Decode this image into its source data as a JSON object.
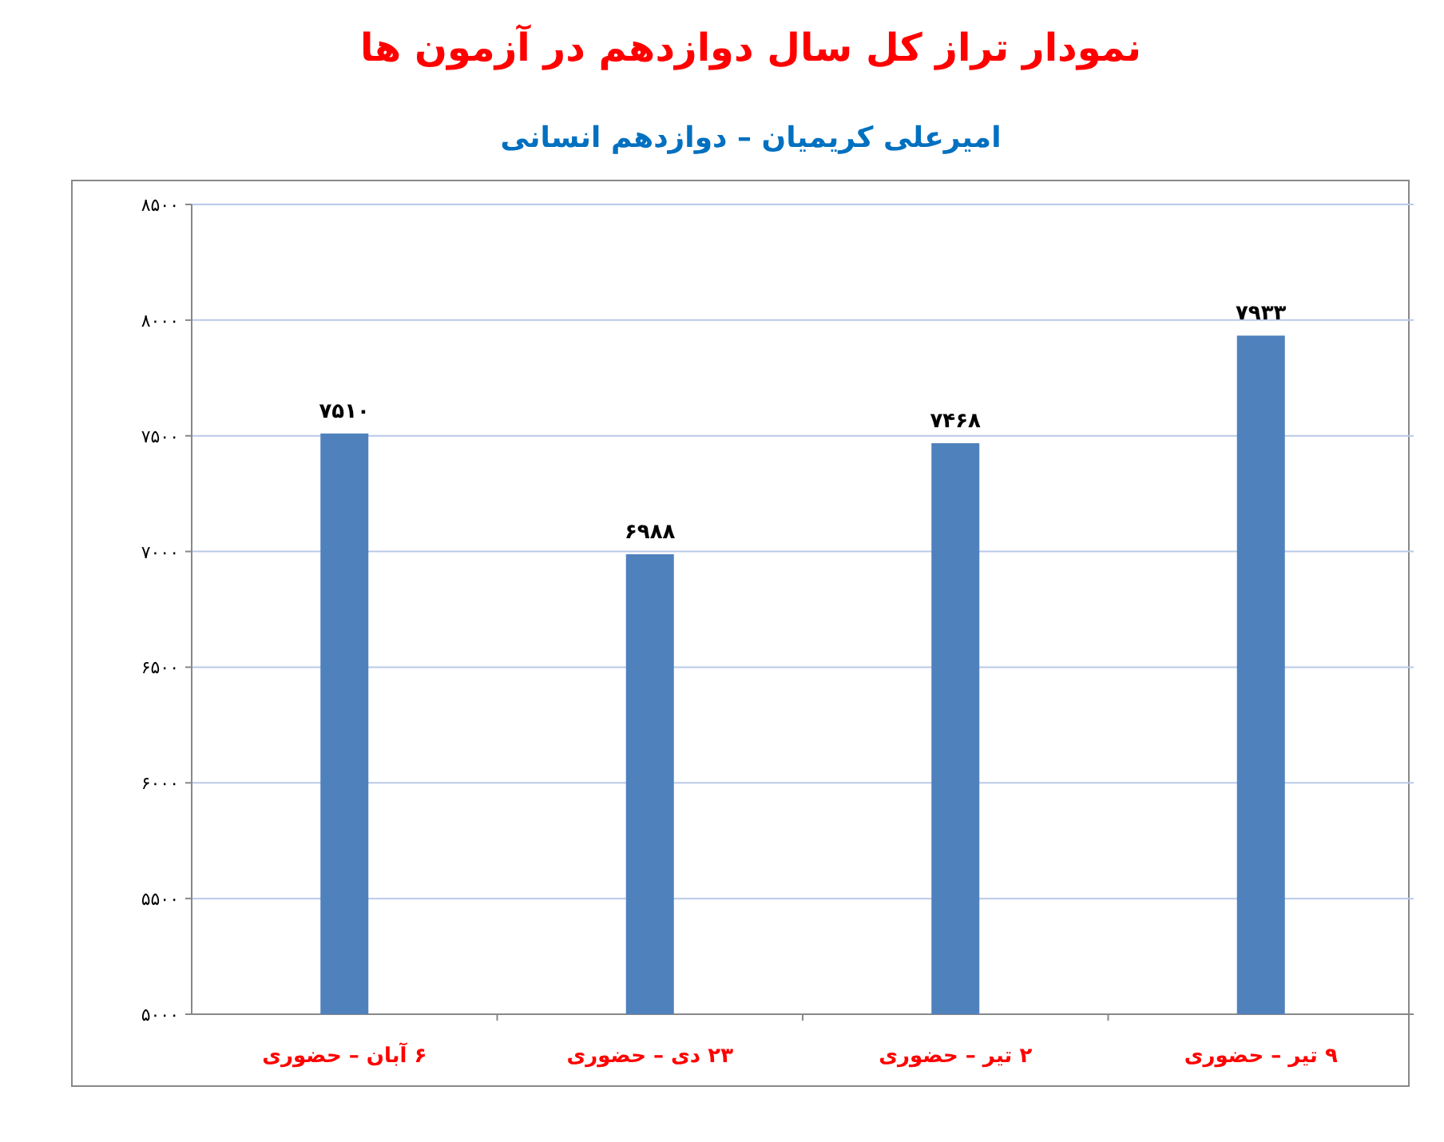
{
  "chart_data": {
    "type": "bar",
    "title": "نمودار تراز کل سال دوازدهم در آزمون ها",
    "subtitle": "امیرعلی کریمیان – دوازدهم انسانی",
    "categories": [
      "۶ آبان – حضوری",
      "۲۳ دی – حضوری",
      "۲ تیر – حضوری",
      "۹ تیر – حضوری"
    ],
    "values": [
      7510,
      6988,
      7468,
      7933
    ],
    "value_labels": [
      "۷۵۱۰",
      "۶۹۸۸",
      "۷۴۶۸",
      "۷۹۳۳"
    ],
    "color": "#4f81bd",
    "ylim": [
      5000,
      8500
    ],
    "yticks": [
      {
        "value": 5000,
        "label": "۵۰۰۰"
      },
      {
        "value": 5500,
        "label": "۵۵۰۰"
      },
      {
        "value": 6000,
        "label": "۶۰۰۰"
      },
      {
        "value": 6500,
        "label": "۶۵۰۰"
      },
      {
        "value": 7000,
        "label": "۷۰۰۰"
      },
      {
        "value": 7500,
        "label": "۷۵۰۰"
      },
      {
        "value": 8000,
        "label": "۸۰۰۰"
      },
      {
        "value": 8500,
        "label": "۸۵۰۰"
      }
    ],
    "grid": "y"
  }
}
